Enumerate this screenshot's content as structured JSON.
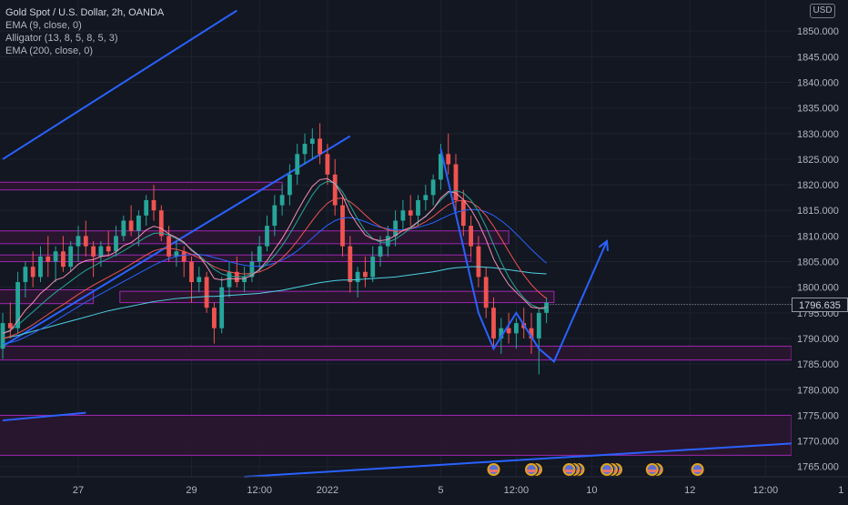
{
  "header": {
    "title": "Gold Spot / U.S. Dollar, 2h, OANDA",
    "indicators": [
      "EMA (9, close, 0)",
      "Alligator (13, 8, 5, 8, 5, 3)",
      "EMA (200, close, 0)"
    ],
    "currency_badge": "USD"
  },
  "colors": {
    "background": "#131722",
    "up_candle": "#26a69a",
    "down_candle": "#ef5350",
    "zone_fill": "#2b1630",
    "zone_border": "#9c27b0",
    "trend_line": "#2962ff",
    "last_price_line": "#b2b5be"
  },
  "chart_data": {
    "type": "candlestick",
    "symbol": "Gold Spot / U.S. Dollar",
    "timeframe": "2h",
    "source": "OANDA",
    "y_axis": {
      "range": [
        1763,
        1855
      ],
      "ticks": [
        1850,
        1845,
        1840,
        1835,
        1830,
        1825,
        1820,
        1815,
        1810,
        1805,
        1800,
        1795,
        1790,
        1785,
        1780,
        1775,
        1770,
        1765
      ],
      "tick_labels": [
        "1850.000",
        "1845.000",
        "1840.000",
        "1835.000",
        "1830.000",
        "1825.000",
        "1820.000",
        "1815.000",
        "1810.000",
        "1805.000",
        "1800.000",
        "1795.000",
        "1790.000",
        "1785.000",
        "1780.000",
        "1775.000",
        "1770.000",
        "1765.000"
      ]
    },
    "x_axis": {
      "ticks": [
        {
          "label": "27",
          "bar": 10
        },
        {
          "label": "29",
          "bar": 25
        },
        {
          "label": "12:00",
          "bar": 34
        },
        {
          "label": "2022",
          "bar": 43
        },
        {
          "label": "5",
          "bar": 58
        },
        {
          "label": "12:00",
          "bar": 68
        },
        {
          "label": "10",
          "bar": 78
        },
        {
          "label": "12",
          "bar": 91
        },
        {
          "label": "12:00",
          "bar": 101
        },
        {
          "label": "1",
          "bar": 111
        }
      ]
    },
    "last_price": 1796.635,
    "last_price_label": "1796.635",
    "candles": [
      [
        1788,
        1795,
        1786,
        1793
      ],
      [
        1793,
        1797,
        1790,
        1792
      ],
      [
        1792,
        1803,
        1791,
        1801
      ],
      [
        1801,
        1805,
        1798,
        1804
      ],
      [
        1804,
        1807,
        1800,
        1802
      ],
      [
        1802,
        1808,
        1801,
        1806
      ],
      [
        1806,
        1810,
        1802,
        1805
      ],
      [
        1805,
        1808,
        1801,
        1807
      ],
      [
        1807,
        1810,
        1803,
        1804
      ],
      [
        1804,
        1809,
        1803,
        1808
      ],
      [
        1808,
        1812,
        1805,
        1810
      ],
      [
        1810,
        1813,
        1806,
        1808
      ],
      [
        1808,
        1809,
        1802,
        1806
      ],
      [
        1806,
        1809,
        1804,
        1808
      ],
      [
        1808,
        1811,
        1806,
        1807
      ],
      [
        1807,
        1812,
        1806,
        1810
      ],
      [
        1810,
        1814,
        1809,
        1813
      ],
      [
        1813,
        1816,
        1810,
        1811
      ],
      [
        1811,
        1815,
        1808,
        1814
      ],
      [
        1814,
        1818,
        1812,
        1817
      ],
      [
        1817,
        1820,
        1813,
        1815
      ],
      [
        1815,
        1816,
        1809,
        1810
      ],
      [
        1810,
        1812,
        1805,
        1806
      ],
      [
        1806,
        1809,
        1804,
        1807
      ],
      [
        1807,
        1808,
        1802,
        1805
      ],
      [
        1805,
        1806,
        1797,
        1801
      ],
      [
        1801,
        1804,
        1799,
        1802
      ],
      [
        1802,
        1803,
        1795,
        1796
      ],
      [
        1796,
        1797,
        1789,
        1792
      ],
      [
        1792,
        1802,
        1791,
        1800
      ],
      [
        1800,
        1805,
        1798,
        1803
      ],
      [
        1803,
        1806,
        1800,
        1801
      ],
      [
        1801,
        1804,
        1799,
        1802
      ],
      [
        1802,
        1807,
        1801,
        1805
      ],
      [
        1805,
        1810,
        1803,
        1808
      ],
      [
        1808,
        1814,
        1807,
        1812
      ],
      [
        1812,
        1818,
        1810,
        1816
      ],
      [
        1816,
        1820,
        1814,
        1818
      ],
      [
        1818,
        1824,
        1816,
        1822
      ],
      [
        1822,
        1828,
        1820,
        1826
      ],
      [
        1826,
        1830,
        1824,
        1828
      ],
      [
        1828,
        1831,
        1825,
        1829
      ],
      [
        1829,
        1832,
        1824,
        1826
      ],
      [
        1826,
        1828,
        1820,
        1822
      ],
      [
        1822,
        1825,
        1814,
        1816
      ],
      [
        1816,
        1818,
        1806,
        1808
      ],
      [
        1808,
        1810,
        1799,
        1801
      ],
      [
        1801,
        1804,
        1798,
        1803
      ],
      [
        1803,
        1806,
        1800,
        1802
      ],
      [
        1802,
        1808,
        1801,
        1806
      ],
      [
        1806,
        1810,
        1804,
        1808
      ],
      [
        1808,
        1812,
        1806,
        1810
      ],
      [
        1810,
        1815,
        1808,
        1813
      ],
      [
        1813,
        1817,
        1811,
        1815
      ],
      [
        1815,
        1818,
        1812,
        1814
      ],
      [
        1814,
        1818,
        1812,
        1817
      ],
      [
        1817,
        1820,
        1815,
        1818
      ],
      [
        1818,
        1822,
        1816,
        1821
      ],
      [
        1821,
        1828,
        1819,
        1826
      ],
      [
        1826,
        1830,
        1822,
        1824
      ],
      [
        1824,
        1826,
        1815,
        1817
      ],
      [
        1817,
        1819,
        1810,
        1812
      ],
      [
        1812,
        1814,
        1806,
        1808
      ],
      [
        1808,
        1810,
        1800,
        1802
      ],
      [
        1802,
        1804,
        1794,
        1796
      ],
      [
        1796,
        1798,
        1788,
        1790
      ],
      [
        1790,
        1794,
        1787,
        1792
      ],
      [
        1792,
        1795,
        1789,
        1791
      ],
      [
        1791,
        1794,
        1788,
        1793
      ],
      [
        1793,
        1796,
        1790,
        1792
      ],
      [
        1792,
        1795,
        1787,
        1790
      ],
      [
        1790,
        1796,
        1783,
        1795
      ],
      [
        1795,
        1798,
        1793,
        1797
      ]
    ],
    "ema_9": [
      1791,
      1791.5,
      1793.5,
      1795.5,
      1797,
      1798.8,
      1800,
      1801.4,
      1801.9,
      1803.1,
      1804.5,
      1805.2,
      1805.4,
      1806,
      1806.2,
      1806.9,
      1808.1,
      1808.7,
      1809.8,
      1811.2,
      1811.9,
      1811.5,
      1810.4,
      1809.7,
      1808.8,
      1807.2,
      1806.1,
      1804.1,
      1801.7,
      1801.4,
      1801.7,
      1801.6,
      1801.7,
      1802.3,
      1803.5,
      1805.2,
      1807.4,
      1809.5,
      1812,
      1814.8,
      1817.4,
      1819.7,
      1821,
      1821.2,
      1820.2,
      1817.8,
      1814.5,
      1812.2,
      1810.2,
      1809.4,
      1809.1,
      1809.3,
      1810.1,
      1811.1,
      1811.7,
      1812.8,
      1813.8,
      1815.3,
      1817.4,
      1818.7,
      1818.4,
      1817.1,
      1815.2,
      1812.6,
      1809.3,
      1805.5,
      1802.8,
      1800.5,
      1799,
      1797.6,
      1796.1,
      1795.9,
      1796.1
    ],
    "ema_200": [
      1790,
      1790.3,
      1790.6,
      1791,
      1791.4,
      1791.8,
      1792.2,
      1792.6,
      1793,
      1793.4,
      1793.8,
      1794.2,
      1794.6,
      1795,
      1795.4,
      1795.7,
      1796,
      1796.3,
      1796.6,
      1796.9,
      1797.2,
      1797.4,
      1797.6,
      1797.8,
      1797.9,
      1798,
      1798.1,
      1798.2,
      1798.2,
      1798.3,
      1798.4,
      1798.5,
      1798.6,
      1798.7,
      1798.8,
      1799,
      1799.2,
      1799.4,
      1799.7,
      1800,
      1800.3,
      1800.6,
      1800.9,
      1801.1,
      1801.3,
      1801.4,
      1801.4,
      1801.5,
      1801.6,
      1801.7,
      1801.8,
      1801.9,
      1802,
      1802.2,
      1802.4,
      1802.6,
      1802.8,
      1803,
      1803.3,
      1803.6,
      1803.8,
      1803.9,
      1804,
      1804,
      1803.9,
      1803.8,
      1803.6,
      1803.4,
      1803.2,
      1803,
      1802.8,
      1802.7,
      1802.6
    ],
    "alligator": [
      {
        "name": "Jaw",
        "color": "#2962ff",
        "values": [
          1789,
          1789.2,
          1789.6,
          1790.3,
          1791,
          1791.8,
          1792.6,
          1793.5,
          1794.4,
          1795.3,
          1796.2,
          1797.1,
          1797.9,
          1798.7,
          1799.5,
          1800.3,
          1801.1,
          1801.9,
          1802.7,
          1803.5,
          1804.3,
          1805,
          1805.6,
          1806,
          1806.3,
          1806.4,
          1806.4,
          1806.2,
          1805.8,
          1805.4,
          1805,
          1804.6,
          1804.3,
          1804.1,
          1804.1,
          1804.3,
          1804.7,
          1805.3,
          1806.1,
          1807.1,
          1808.3,
          1809.6,
          1810.9,
          1812.1,
          1813,
          1813.5,
          1813.6,
          1813.3,
          1812.8,
          1812.2,
          1811.7,
          1811.4,
          1811.2,
          1811.2,
          1811.4,
          1811.7,
          1812.1,
          1812.6,
          1813.3,
          1814,
          1814.6,
          1815,
          1815.2,
          1815.1,
          1814.7,
          1814,
          1813,
          1811.8,
          1810.4,
          1808.9,
          1807.4,
          1806,
          1804.7
        ]
      },
      {
        "name": "Teeth",
        "color": "#ef5350",
        "values": [
          1790,
          1790.4,
          1791,
          1791.8,
          1792.7,
          1793.7,
          1794.7,
          1795.7,
          1796.6,
          1797.6,
          1798.6,
          1799.5,
          1800.4,
          1801.2,
          1802,
          1802.8,
          1803.6,
          1804.5,
          1805.4,
          1806.3,
          1807.1,
          1807.5,
          1807.6,
          1807.4,
          1807,
          1806.4,
          1805.7,
          1804.9,
          1804,
          1803.4,
          1803,
          1802.7,
          1802.6,
          1802.7,
          1803,
          1803.6,
          1804.5,
          1805.7,
          1807.2,
          1809,
          1811,
          1813,
          1814.9,
          1816.4,
          1817.3,
          1817.4,
          1816.7,
          1815.5,
          1814.1,
          1812.8,
          1811.8,
          1811.2,
          1810.9,
          1811,
          1811.4,
          1812,
          1812.8,
          1813.8,
          1815,
          1816.1,
          1816.8,
          1817,
          1816.6,
          1815.6,
          1814,
          1811.9,
          1809.5,
          1807,
          1804.6,
          1802.4,
          1800.5,
          1799,
          1797.8
        ]
      },
      {
        "name": "Lips",
        "color": "#26a69a",
        "values": [
          1791,
          1791.6,
          1792.6,
          1793.9,
          1795.2,
          1796.5,
          1797.8,
          1799,
          1800.1,
          1801.2,
          1802.3,
          1803.3,
          1804.1,
          1804.9,
          1805.6,
          1806.3,
          1807.1,
          1808,
          1808.9,
          1809.8,
          1810.5,
          1810.6,
          1810.2,
          1809.5,
          1808.6,
          1807.4,
          1806.2,
          1804.9,
          1803.5,
          1802.6,
          1802.2,
          1802,
          1802.1,
          1802.6,
          1803.4,
          1804.6,
          1806.2,
          1808.1,
          1810.4,
          1812.9,
          1815.5,
          1818,
          1819.9,
          1820.7,
          1820.3,
          1818.6,
          1816,
          1813.3,
          1811,
          1809.5,
          1808.8,
          1808.8,
          1809.4,
          1810.4,
          1811.5,
          1812.7,
          1813.9,
          1815.3,
          1817,
          1818.4,
          1818.9,
          1818.4,
          1817,
          1814.8,
          1811.8,
          1808.3,
          1804.9,
          1802,
          1799.7,
          1797.9,
          1796.6,
          1795.9,
          1795.7
        ]
      }
    ],
    "zones": [
      {
        "from_bar": 0,
        "to_bar": 37,
        "top": 1820.5,
        "bottom": 1819
      },
      {
        "from_bar": 0,
        "to_bar": 67,
        "top": 1811,
        "bottom": 1808.5
      },
      {
        "from_bar": 0,
        "to_bar": 62,
        "top": 1806.3,
        "bottom": 1805
      },
      {
        "from_bar": 0,
        "to_bar": 12,
        "top": 1799.5,
        "bottom": 1796.8
      },
      {
        "from_bar": 16,
        "to_bar": 73,
        "top": 1799.2,
        "bottom": 1797
      },
      {
        "from_bar": 0,
        "to_bar": 111,
        "top": 1788.5,
        "bottom": 1785.8
      },
      {
        "from_bar": 0,
        "to_bar": 111,
        "top": 1775,
        "bottom": 1767.2
      }
    ],
    "trend_lines": [
      {
        "from": [
          0,
          1825
        ],
        "to": [
          31,
          1854
        ]
      },
      {
        "from": [
          0,
          1788.5
        ],
        "to": [
          46,
          1829.5
        ]
      },
      {
        "from": [
          0,
          1774
        ],
        "to": [
          11,
          1775.5
        ]
      },
      {
        "from": [
          32,
          1763
        ],
        "to": [
          111,
          1769.5
        ]
      }
    ],
    "projection_path": [
      [
        58,
        1827
      ],
      [
        63,
        1795
      ],
      [
        65,
        1788
      ],
      [
        68,
        1795
      ],
      [
        71,
        1788
      ],
      [
        73,
        1785.5
      ],
      [
        80,
        1809
      ]
    ],
    "event_markers": [
      {
        "bar": 65,
        "count": 1
      },
      {
        "bar": 70,
        "count": 2
      },
      {
        "bar": 75,
        "count": 3
      },
      {
        "bar": 80,
        "count": 3
      },
      {
        "bar": 86,
        "count": 2
      },
      {
        "bar": 92,
        "count": 1
      }
    ]
  }
}
